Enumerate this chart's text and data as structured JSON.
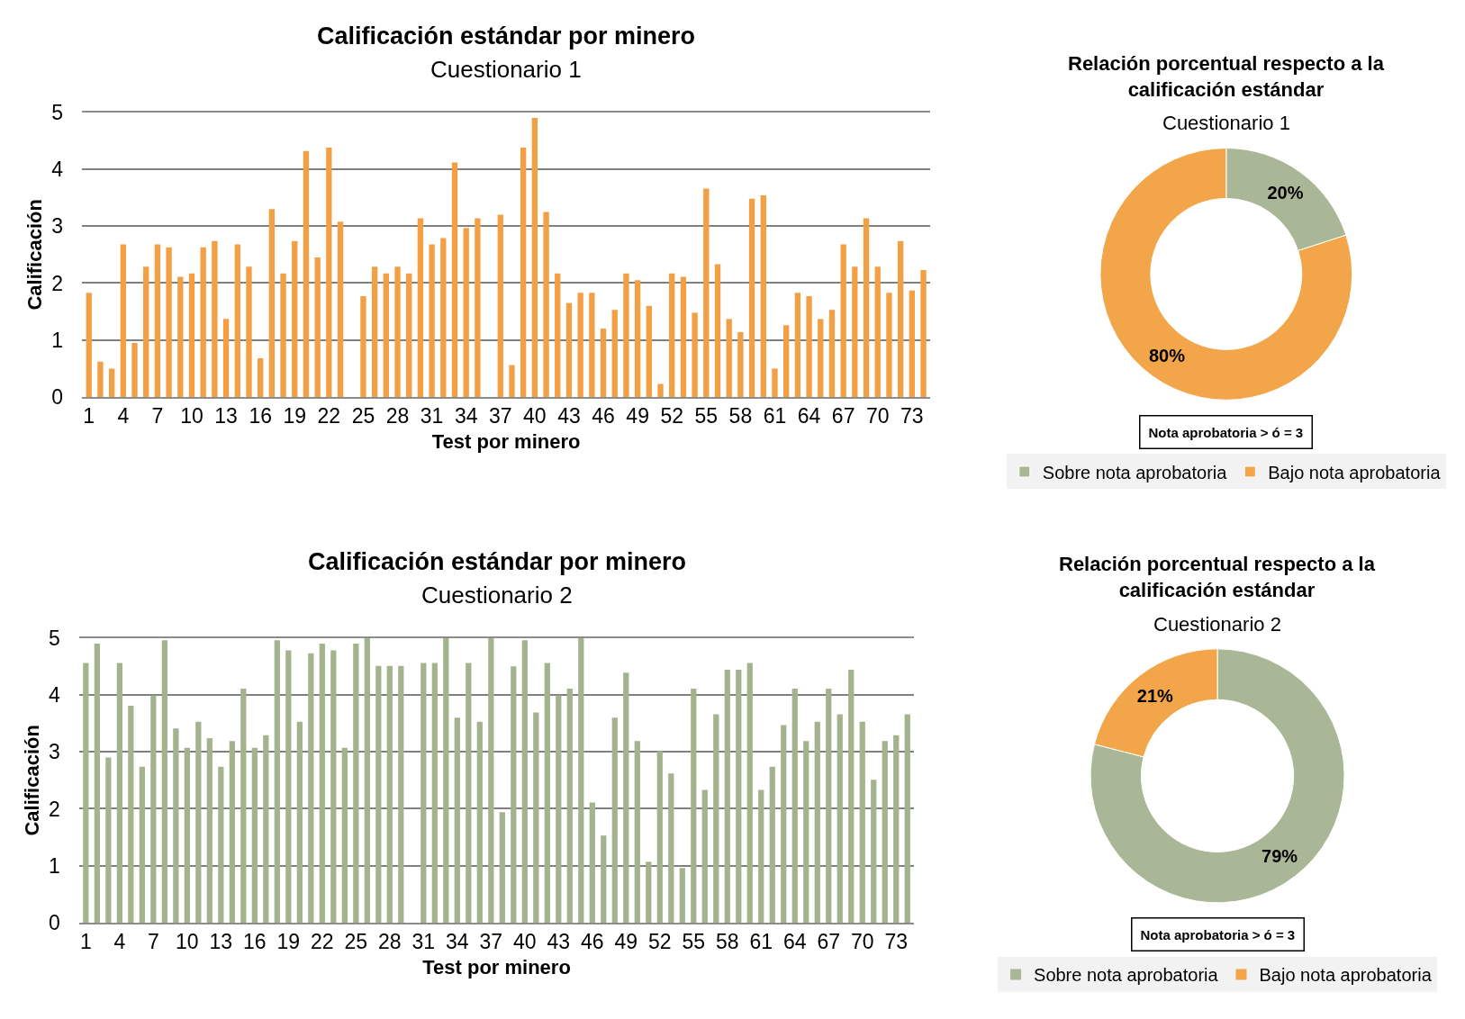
{
  "chart_data": [
    {
      "type": "bar",
      "title": "Calificación estándar por minero",
      "subtitle": "Cuestionario 1",
      "xlabel": "Test por minero",
      "ylabel": "Calificación",
      "categories": [
        "1",
        null,
        null,
        "4",
        null,
        null,
        "7",
        null,
        null,
        "10",
        null,
        null,
        "13",
        null,
        null,
        "16",
        null,
        null,
        "19",
        null,
        null,
        "22",
        null,
        null,
        "25",
        null,
        null,
        "28",
        null,
        null,
        "31",
        null,
        null,
        "34",
        null,
        null,
        "37",
        null,
        null,
        "40",
        null,
        null,
        "43",
        null,
        null,
        "46",
        null,
        null,
        "49",
        null,
        null,
        "52",
        null,
        null,
        "55",
        null,
        null,
        "58",
        null,
        null,
        "61",
        null,
        null,
        "64",
        null,
        null,
        "67",
        null,
        null,
        "70",
        null,
        null,
        "73",
        null
      ],
      "values": [
        1.83,
        0.62,
        0.5,
        2.68,
        0.95,
        2.29,
        2.68,
        2.63,
        2.11,
        2.17,
        2.63,
        2.74,
        1.37,
        2.68,
        2.29,
        0.68,
        3.3,
        2.17,
        2.74,
        4.32,
        2.45,
        4.38,
        3.08,
        0,
        1.77,
        2.29,
        2.17,
        2.29,
        2.17,
        3.14,
        2.68,
        2.79,
        4.12,
        2.97,
        3.14,
        0,
        3.2,
        0.56,
        4.38,
        4.9,
        3.25,
        2.17,
        1.65,
        1.83,
        1.83,
        1.2,
        1.53,
        2.17,
        2.05,
        1.6,
        0.23,
        2.17,
        2.11,
        1.48,
        3.66,
        2.33,
        1.37,
        1.14,
        3.48,
        3.54,
        0.5,
        1.26,
        1.83,
        1.77,
        1.37,
        1.53,
        2.68,
        2.29,
        3.14,
        2.29,
        1.83,
        2.74,
        1.87,
        2.23
      ],
      "color": "#f3a045",
      "ylim": [
        0,
        5
      ],
      "yticks": [
        0,
        1,
        2,
        3,
        4,
        5
      ],
      "grid": "y"
    },
    {
      "type": "donut",
      "title": "Relación porcentual respecto a la calificación estándar",
      "subtitle": "Cuestionario 1",
      "categories": [
        "Sobre nota aprobatoria",
        "Bajo nota aprobatoria"
      ],
      "values": [
        20,
        80
      ],
      "colors": [
        "#a9b796",
        "#f2a549"
      ],
      "value_labels": [
        "20%",
        "80%"
      ],
      "annotations": [
        "Nota aprobatoria > ó = 3"
      ],
      "legend": "bottom"
    },
    {
      "type": "bar",
      "title": "Calificación estándar por minero",
      "subtitle": "Cuestionario 2",
      "xlabel": "Test por minero",
      "ylabel": "Calificación",
      "categories": [
        "1",
        null,
        null,
        "4",
        null,
        null,
        "7",
        null,
        null,
        "10",
        null,
        null,
        "13",
        null,
        null,
        "16",
        null,
        null,
        "19",
        null,
        null,
        "22",
        null,
        null,
        "25",
        null,
        null,
        "28",
        null,
        null,
        "31",
        null,
        null,
        "34",
        null,
        null,
        "37",
        null,
        null,
        "40",
        null,
        null,
        "43",
        null,
        null,
        "46",
        null,
        null,
        "49",
        null,
        null,
        "52",
        null,
        null,
        "55",
        null,
        null,
        "58",
        null,
        null,
        "61",
        null,
        null,
        "64",
        null,
        null,
        "67",
        null,
        null,
        "70",
        null,
        null,
        "73",
        null
      ],
      "values": [
        4.56,
        4.9,
        2.9,
        4.56,
        3.81,
        2.74,
        3.99,
        4.96,
        3.41,
        3.07,
        3.53,
        3.24,
        2.74,
        3.19,
        4.11,
        3.07,
        3.29,
        4.96,
        4.78,
        3.53,
        4.73,
        4.9,
        4.78,
        3.07,
        4.9,
        5.0,
        4.51,
        4.51,
        4.51,
        0,
        4.56,
        4.56,
        5.0,
        3.6,
        4.56,
        3.53,
        5.0,
        1.94,
        4.5,
        4.96,
        3.69,
        4.56,
        3.99,
        4.11,
        5.0,
        2.11,
        1.53,
        3.6,
        4.39,
        3.19,
        1.07,
        3.01,
        2.62,
        0.96,
        4.11,
        2.33,
        3.66,
        4.44,
        4.44,
        4.56,
        2.33,
        2.74,
        3.47,
        4.11,
        3.19,
        3.53,
        4.11,
        3.66,
        4.44,
        3.53,
        2.51,
        3.19,
        3.29,
        3.66
      ],
      "color": "#a3b38e",
      "ylim": [
        0,
        5
      ],
      "yticks": [
        0,
        1,
        2,
        3,
        4,
        5
      ],
      "grid": "y"
    },
    {
      "type": "donut",
      "title": "Relación porcentual respecto a la calificación estándar",
      "subtitle": "Cuestionario 2",
      "categories": [
        "Sobre nota aprobatoria",
        "Bajo nota aprobatoria"
      ],
      "values": [
        79,
        21
      ],
      "colors": [
        "#a9b796",
        "#f2a549"
      ],
      "value_labels": [
        "79%",
        "21%"
      ],
      "annotations": [
        "Nota aprobatoria > ó = 3"
      ],
      "legend": "bottom"
    }
  ]
}
